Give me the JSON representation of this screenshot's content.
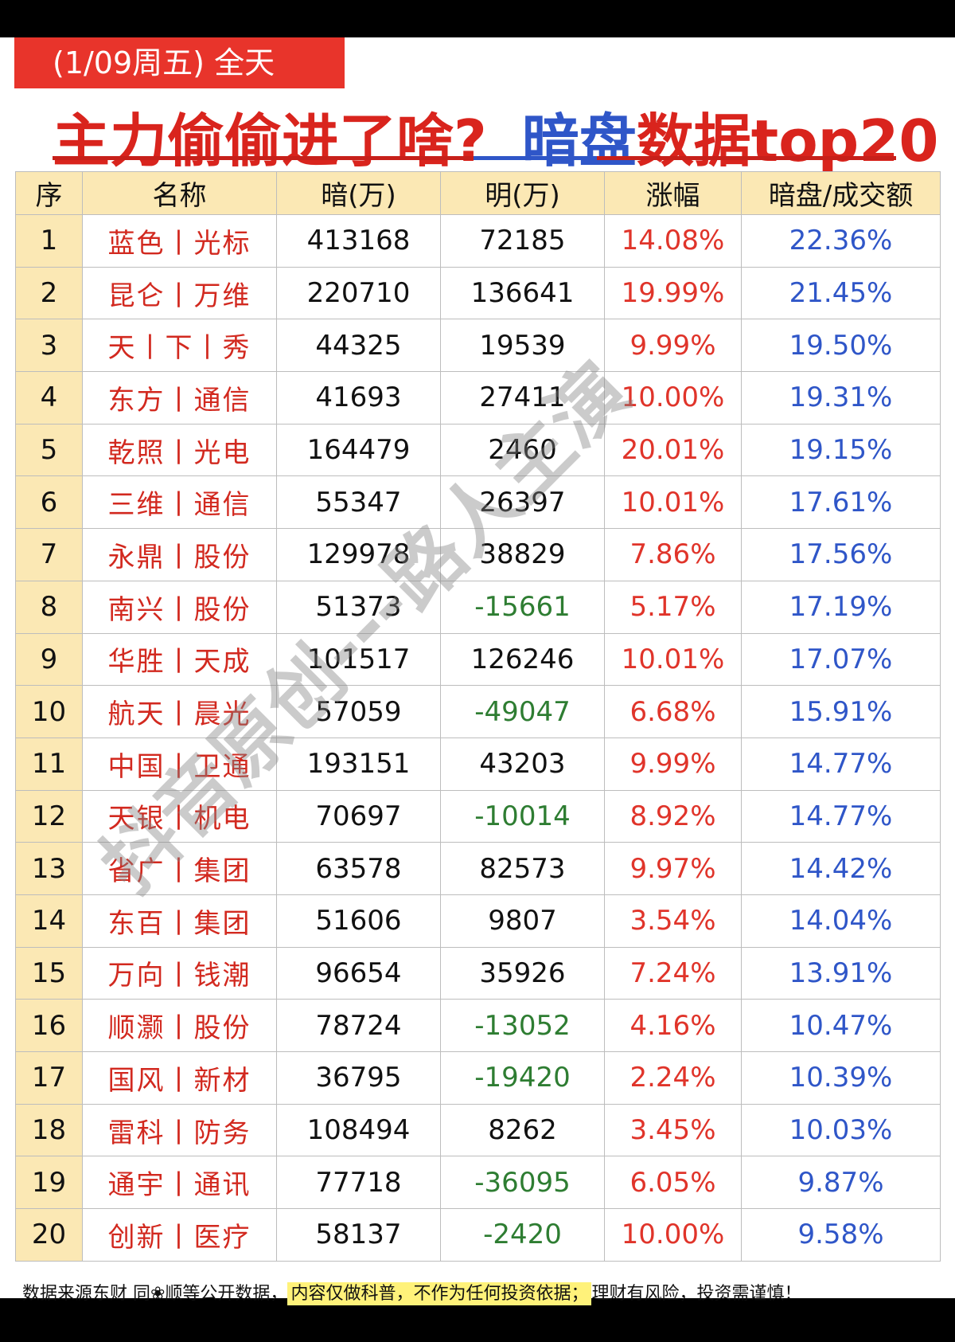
{
  "header": {
    "date_tag": "(1/09周五) 全天",
    "title_red": "主力偷偷进了啥?",
    "title_blue": "暗盘",
    "title_tail": "数据top20"
  },
  "table": {
    "columns": [
      "序",
      "名称",
      "暗(万)",
      "明(万)",
      "涨幅",
      "暗盘/成交额"
    ],
    "rows": [
      {
        "idx": "1",
        "name": "蓝色丨光标",
        "dark": "413168",
        "open": "72185",
        "chg": "14.08%",
        "ratio": "22.36%"
      },
      {
        "idx": "2",
        "name": "昆仑丨万维",
        "dark": "220710",
        "open": "136641",
        "chg": "19.99%",
        "ratio": "21.45%"
      },
      {
        "idx": "3",
        "name": "天丨下丨秀",
        "dark": "44325",
        "open": "19539",
        "chg": "9.99%",
        "ratio": "19.50%"
      },
      {
        "idx": "4",
        "name": "东方丨通信",
        "dark": "41693",
        "open": "27411",
        "chg": "10.00%",
        "ratio": "19.31%"
      },
      {
        "idx": "5",
        "name": "乾照丨光电",
        "dark": "164479",
        "open": "2460",
        "chg": "20.01%",
        "ratio": "19.15%"
      },
      {
        "idx": "6",
        "name": "三维丨通信",
        "dark": "55347",
        "open": "26397",
        "chg": "10.01%",
        "ratio": "17.61%"
      },
      {
        "idx": "7",
        "name": "永鼎丨股份",
        "dark": "129978",
        "open": "38829",
        "chg": "7.86%",
        "ratio": "17.56%"
      },
      {
        "idx": "8",
        "name": "南兴丨股份",
        "dark": "51373",
        "open": "-15661",
        "chg": "5.17%",
        "ratio": "17.19%"
      },
      {
        "idx": "9",
        "name": "华胜丨天成",
        "dark": "101517",
        "open": "126246",
        "chg": "10.01%",
        "ratio": "17.07%"
      },
      {
        "idx": "10",
        "name": "航天丨晨光",
        "dark": "57059",
        "open": "-49047",
        "chg": "6.68%",
        "ratio": "15.91%"
      },
      {
        "idx": "11",
        "name": "中国丨卫通",
        "dark": "193151",
        "open": "43203",
        "chg": "9.99%",
        "ratio": "14.77%"
      },
      {
        "idx": "12",
        "name": "天银丨机电",
        "dark": "70697",
        "open": "-10014",
        "chg": "8.92%",
        "ratio": "14.77%"
      },
      {
        "idx": "13",
        "name": "省广丨集团",
        "dark": "63578",
        "open": "82573",
        "chg": "9.97%",
        "ratio": "14.42%"
      },
      {
        "idx": "14",
        "name": "东百丨集团",
        "dark": "51606",
        "open": "9807",
        "chg": "3.54%",
        "ratio": "14.04%"
      },
      {
        "idx": "15",
        "name": "万向丨钱潮",
        "dark": "96654",
        "open": "35926",
        "chg": "7.24%",
        "ratio": "13.91%"
      },
      {
        "idx": "16",
        "name": "顺灏丨股份",
        "dark": "78724",
        "open": "-13052",
        "chg": "4.16%",
        "ratio": "10.47%"
      },
      {
        "idx": "17",
        "name": "国风丨新材",
        "dark": "36795",
        "open": "-19420",
        "chg": "2.24%",
        "ratio": "10.39%"
      },
      {
        "idx": "18",
        "name": "雷科丨防务",
        "dark": "108494",
        "open": "8262",
        "chg": "3.45%",
        "ratio": "10.03%"
      },
      {
        "idx": "19",
        "name": "通宇丨通讯",
        "dark": "77718",
        "open": "-36095",
        "chg": "6.05%",
        "ratio": "9.87%"
      },
      {
        "idx": "20",
        "name": "创新丨医疗",
        "dark": "58137",
        "open": "-2420",
        "chg": "10.00%",
        "ratio": "9.58%"
      }
    ]
  },
  "watermark": "抖音原创---路人主演",
  "footer": {
    "left": "数据来源东财 同❀顺等公开数据，",
    "highlight": "内容仅做科普，不作为任何投资依据；",
    "right": "理财有风险，投资需谨慎！"
  },
  "colors": {
    "red": "#d9241d",
    "blue": "#2f56c8",
    "green": "#2e7d32",
    "header_bg": "#fbe8b4",
    "highlight": "#fff27a"
  }
}
